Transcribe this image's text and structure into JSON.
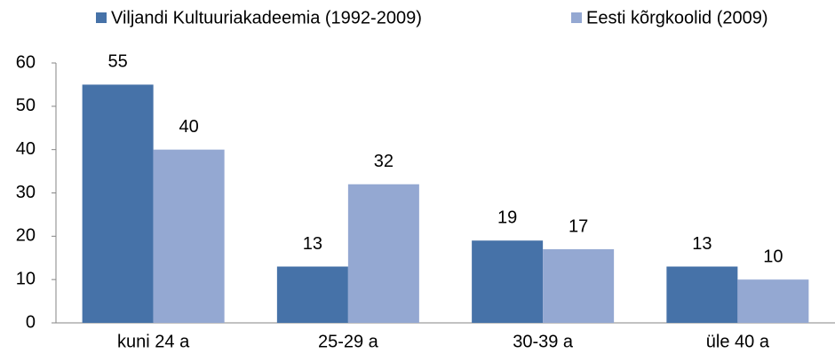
{
  "chart_data": {
    "type": "bar",
    "categories": [
      "kuni 24 a",
      "25-29 a",
      "30-39 a",
      "üle 40 a"
    ],
    "series": [
      {
        "name": "Viljandi Kultuuriakadeemia (1992-2009)",
        "color": "#4672a8",
        "values": [
          55,
          13,
          19,
          13
        ]
      },
      {
        "name": "Eesti kõrgkoolid (2009)",
        "color": "#94a8d2",
        "values": [
          40,
          32,
          17,
          10
        ]
      }
    ],
    "ylim": [
      0,
      60
    ],
    "yticks": [
      0,
      10,
      20,
      30,
      40,
      50,
      60
    ],
    "grid": false,
    "legend": "top"
  }
}
